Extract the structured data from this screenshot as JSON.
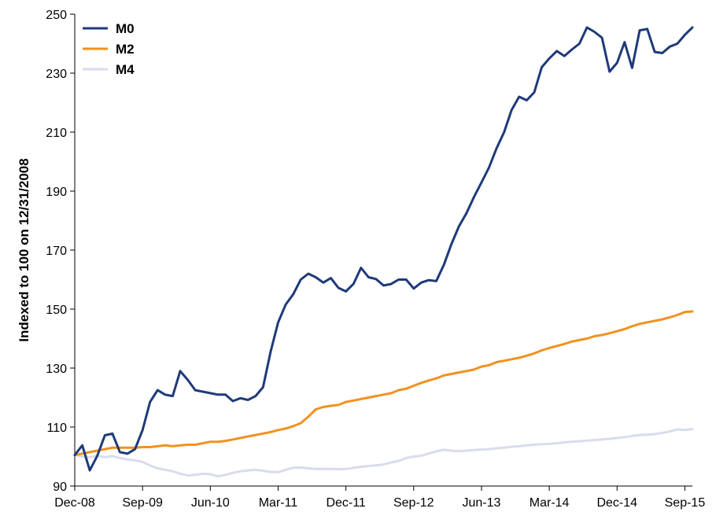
{
  "chart_data": {
    "type": "line",
    "ylabel": "Indexed to 100 on 12/31/2008",
    "xlabel": "",
    "ylim": [
      90,
      250
    ],
    "yticks": [
      90,
      110,
      130,
      150,
      170,
      190,
      210,
      230,
      250
    ],
    "x_tick_labels": [
      "Dec-08",
      "Sep-09",
      "Jun-10",
      "Mar-11",
      "Dec-11",
      "Sep-12",
      "Jun-13",
      "Mar-14",
      "Dec-14",
      "Sep-15"
    ],
    "x_tick_months": [
      0,
      9,
      18,
      27,
      36,
      45,
      54,
      63,
      72,
      81
    ],
    "x_range_months": [
      0,
      82
    ],
    "grid": false,
    "legend_position": "top-left",
    "series": [
      {
        "name": "M0",
        "color": "#1f3a7a",
        "values": [
          100.5,
          103.8,
          95.3,
          100.3,
          107.2,
          107.8,
          101.5,
          101.0,
          102.5,
          109.0,
          118.5,
          122.5,
          121.0,
          120.5,
          129.0,
          126.0,
          122.5,
          122.0,
          121.5,
          121.0,
          121.0,
          118.8,
          119.8,
          119.2,
          120.5,
          123.5,
          135.5,
          145.5,
          151.5,
          155.0,
          160.0,
          162.0,
          160.8,
          159.0,
          160.5,
          157.2,
          156.0,
          158.5,
          164.0,
          160.8,
          160.2,
          158.0,
          158.5,
          160.0,
          160.0,
          157.0,
          159.0,
          159.8,
          159.5,
          165.0,
          172.0,
          178.0,
          182.5,
          188.0,
          193.0,
          198.0,
          204.5,
          210.0,
          217.5,
          222.0,
          220.8,
          223.5,
          232.0,
          235.0,
          237.5,
          235.8,
          238.0,
          240.0,
          245.5,
          244.0,
          242.0,
          230.5,
          233.5,
          240.5,
          231.8,
          244.5,
          245.0,
          237.2,
          236.8,
          239.0,
          240.0,
          243.0,
          245.5
        ]
      },
      {
        "name": "M2",
        "color": "#f0921e",
        "values": [
          100.5,
          101.0,
          101.5,
          102.0,
          102.5,
          103.0,
          103.0,
          103.0,
          103.0,
          103.2,
          103.2,
          103.5,
          103.8,
          103.5,
          103.8,
          104.0,
          104.0,
          104.5,
          105.0,
          105.0,
          105.3,
          105.8,
          106.3,
          106.8,
          107.3,
          107.8,
          108.3,
          109.0,
          109.5,
          110.3,
          111.3,
          113.5,
          116.0,
          116.8,
          117.2,
          117.5,
          118.5,
          119.0,
          119.5,
          120.0,
          120.5,
          121.0,
          121.5,
          122.5,
          123.0,
          124.0,
          125.0,
          125.8,
          126.5,
          127.5,
          128.0,
          128.5,
          129.0,
          129.5,
          130.5,
          131.0,
          132.0,
          132.5,
          133.0,
          133.5,
          134.2,
          135.0,
          136.0,
          136.8,
          137.5,
          138.2,
          139.0,
          139.5,
          140.0,
          140.8,
          141.2,
          141.8,
          142.5,
          143.2,
          144.2,
          145.0,
          145.5,
          146.0,
          146.5,
          147.2,
          148.0,
          149.0,
          149.2
        ]
      },
      {
        "name": "M4",
        "color": "#d9dcec",
        "values": [
          100.5,
          100.0,
          99.8,
          100.3,
          99.8,
          100.2,
          99.5,
          99.0,
          98.7,
          98.2,
          97.0,
          96.0,
          95.5,
          95.0,
          94.2,
          93.6,
          93.8,
          94.2,
          94.0,
          93.3,
          93.8,
          94.5,
          95.0,
          95.3,
          95.5,
          95.2,
          94.8,
          94.7,
          95.5,
          96.2,
          96.3,
          96.0,
          95.8,
          95.8,
          95.8,
          95.7,
          95.8,
          96.2,
          96.5,
          96.8,
          97.0,
          97.3,
          98.0,
          98.5,
          99.5,
          100.0,
          100.3,
          101.0,
          101.8,
          102.3,
          102.0,
          101.8,
          102.0,
          102.2,
          102.4,
          102.5,
          102.8,
          103.0,
          103.3,
          103.5,
          103.8,
          104.0,
          104.2,
          104.3,
          104.5,
          104.8,
          105.0,
          105.2,
          105.4,
          105.6,
          105.8,
          106.0,
          106.3,
          106.6,
          107.0,
          107.3,
          107.4,
          107.6,
          108.0,
          108.5,
          109.2,
          109.0,
          109.3
        ]
      }
    ]
  }
}
